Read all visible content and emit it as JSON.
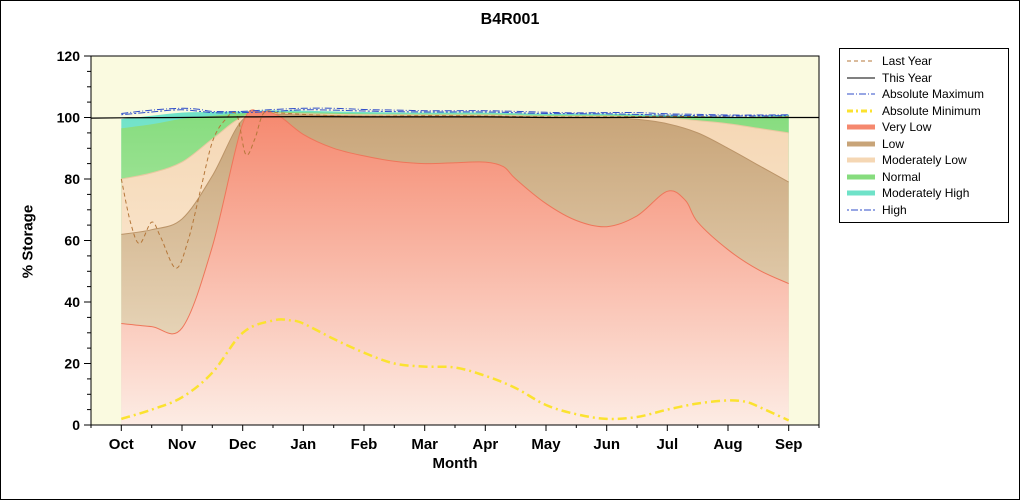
{
  "chart_data": {
    "type": "area",
    "title": "B4R001",
    "xlabel": "Month",
    "ylabel": "% Storage",
    "categories": [
      "Oct",
      "Nov",
      "Dec",
      "Jan",
      "Feb",
      "Mar",
      "Apr",
      "May",
      "Jun",
      "Jul",
      "Aug",
      "Sep"
    ],
    "ylim": [
      0,
      120
    ],
    "y_major_ticks": [
      0,
      20,
      40,
      60,
      80,
      100,
      120
    ],
    "y_minor_step": 5,
    "plot_bg": "#fafae0",
    "bands": [
      {
        "name": "Moderately High",
        "color_top": "#6fe2c8",
        "color_bottom": "#d5f7ee",
        "edge": "",
        "points": [
          [
            0,
            99.5
          ],
          [
            0.5,
            100.6
          ],
          [
            1,
            101.6
          ],
          [
            1.5,
            101.8
          ],
          [
            2,
            102
          ],
          [
            2.5,
            102.3
          ],
          [
            3,
            102.2
          ],
          [
            4,
            101.8
          ],
          [
            5,
            101.6
          ],
          [
            6,
            101.6
          ],
          [
            7,
            101.2
          ],
          [
            8,
            101.2
          ],
          [
            9,
            100.8
          ],
          [
            10,
            100.2
          ],
          [
            10.5,
            100.4
          ],
          [
            11,
            101
          ]
        ]
      },
      {
        "name": "Normal",
        "color_top": "#86dc7e",
        "color_bottom": "#ddf6d4",
        "edge": "",
        "points": [
          [
            0,
            96.5
          ],
          [
            0.5,
            97.8
          ],
          [
            1,
            99.6
          ],
          [
            1.5,
            100.6
          ],
          [
            2,
            101.4
          ],
          [
            2.5,
            101.8
          ],
          [
            3,
            101.7
          ],
          [
            4,
            101.3
          ],
          [
            5,
            101.2
          ],
          [
            6,
            101.2
          ],
          [
            7,
            100.8
          ],
          [
            8,
            100.8
          ],
          [
            9,
            100.3
          ],
          [
            10,
            99.6
          ],
          [
            10.5,
            99.9
          ],
          [
            11,
            100.6
          ]
        ]
      },
      {
        "name": "Moderately Low",
        "color_top": "#f5d7b4",
        "color_bottom": "#fdf2e3",
        "edge": "#e8c9a0",
        "points": [
          [
            0,
            80
          ],
          [
            0.5,
            82
          ],
          [
            1,
            85.5
          ],
          [
            1.5,
            93
          ],
          [
            2,
            100.2
          ],
          [
            2.5,
            101.4
          ],
          [
            3,
            101.2
          ],
          [
            4,
            100.9
          ],
          [
            5,
            100.8
          ],
          [
            6,
            100.8
          ],
          [
            7,
            100.4
          ],
          [
            8,
            100.4
          ],
          [
            9,
            99.8
          ],
          [
            9.5,
            99
          ],
          [
            10,
            98
          ],
          [
            10.5,
            96.5
          ],
          [
            11,
            95
          ]
        ]
      },
      {
        "name": "Low",
        "color_top": "#c8a478",
        "color_bottom": "#f2e6cf",
        "edge": "#bb9468",
        "points": [
          [
            0,
            62
          ],
          [
            0.5,
            63.5
          ],
          [
            1,
            67
          ],
          [
            1.5,
            81
          ],
          [
            2,
            99.3
          ],
          [
            2.5,
            101
          ],
          [
            3,
            100.8
          ],
          [
            4,
            100.5
          ],
          [
            5,
            100.4
          ],
          [
            6,
            100.4
          ],
          [
            7,
            100
          ],
          [
            8,
            100
          ],
          [
            8.5,
            99.4
          ],
          [
            9,
            98
          ],
          [
            9.5,
            95
          ],
          [
            10,
            90
          ],
          [
            10.5,
            84.5
          ],
          [
            11,
            79
          ]
        ]
      },
      {
        "name": "Very Low",
        "color_top": "#f5886e",
        "color_bottom": "#fdece4",
        "edge": "#ee765a",
        "points": [
          [
            0,
            33
          ],
          [
            0.5,
            32
          ],
          [
            1,
            31.5
          ],
          [
            1.5,
            58
          ],
          [
            2,
            98
          ],
          [
            2.3,
            101.8
          ],
          [
            2.6,
            100.5
          ],
          [
            3,
            94.5
          ],
          [
            3.5,
            90
          ],
          [
            4,
            87.5
          ],
          [
            4.5,
            85.8
          ],
          [
            5,
            85
          ],
          [
            5.5,
            85.3
          ],
          [
            6,
            85.5
          ],
          [
            6.3,
            84
          ],
          [
            6.5,
            80
          ],
          [
            7,
            72
          ],
          [
            7.5,
            66.5
          ],
          [
            8,
            64.5
          ],
          [
            8.5,
            68
          ],
          [
            9,
            76
          ],
          [
            9.3,
            73
          ],
          [
            9.5,
            66
          ],
          [
            10,
            57
          ],
          [
            10.5,
            50.5
          ],
          [
            11,
            46
          ]
        ]
      }
    ],
    "lines": [
      {
        "name": "High",
        "color": "#2f4ec9",
        "dash": "2 2 7 2",
        "width": 1,
        "points": [
          [
            0,
            100.9
          ],
          [
            0.5,
            101.8
          ],
          [
            1,
            102.5
          ],
          [
            1.5,
            101.6
          ],
          [
            2,
            101.6
          ],
          [
            2.5,
            102
          ],
          [
            3,
            102.5
          ],
          [
            3.5,
            102.4
          ],
          [
            4,
            102.1
          ],
          [
            5,
            101.8
          ],
          [
            6,
            101.8
          ],
          [
            7,
            101.3
          ],
          [
            8,
            101.2
          ],
          [
            9,
            100.8
          ],
          [
            10,
            100.5
          ],
          [
            11,
            100.6
          ]
        ]
      },
      {
        "name": "Absolute Maximum",
        "color": "#2f4ec9",
        "dash": "7 2 1 2",
        "width": 1,
        "points": [
          [
            0,
            101.3
          ],
          [
            0.5,
            102.4
          ],
          [
            1,
            103
          ],
          [
            1.3,
            102.6
          ],
          [
            1.5,
            102
          ],
          [
            2,
            102
          ],
          [
            2.5,
            102.6
          ],
          [
            3,
            103
          ],
          [
            3.5,
            103
          ],
          [
            4,
            102.6
          ],
          [
            4.5,
            102.4
          ],
          [
            5,
            102.2
          ],
          [
            5.5,
            102.2
          ],
          [
            6,
            102.2
          ],
          [
            6.5,
            102
          ],
          [
            7,
            101.7
          ],
          [
            7.5,
            101.5
          ],
          [
            8,
            101.6
          ],
          [
            8.5,
            101.6
          ],
          [
            9,
            101.2
          ],
          [
            9.5,
            101
          ],
          [
            10,
            100.8
          ],
          [
            10.5,
            100.8
          ],
          [
            11,
            100.9
          ]
        ]
      },
      {
        "name": "Absolute Minimum",
        "color": "#fbe22f",
        "dash": "9 4 2 4",
        "width": 2.5,
        "points": [
          [
            0,
            2
          ],
          [
            0.5,
            5
          ],
          [
            1,
            9
          ],
          [
            1.5,
            17
          ],
          [
            2,
            30
          ],
          [
            2.5,
            34
          ],
          [
            2.8,
            34
          ],
          [
            3,
            33
          ],
          [
            3.5,
            28
          ],
          [
            4,
            23.5
          ],
          [
            4.5,
            20
          ],
          [
            5,
            19
          ],
          [
            5.5,
            18.7
          ],
          [
            6,
            16
          ],
          [
            6.5,
            12
          ],
          [
            7,
            6.5
          ],
          [
            7.5,
            3.5
          ],
          [
            8,
            2
          ],
          [
            8.5,
            2.6
          ],
          [
            9,
            5
          ],
          [
            9.5,
            7
          ],
          [
            10,
            8
          ],
          [
            10.3,
            7.5
          ],
          [
            10.5,
            6
          ],
          [
            11,
            1.5
          ]
        ]
      },
      {
        "name": "Last Year",
        "color": "#b5773a",
        "dash": "4 3",
        "width": 1,
        "points": [
          [
            0,
            80
          ],
          [
            0.15,
            66
          ],
          [
            0.3,
            59
          ],
          [
            0.5,
            66
          ],
          [
            0.65,
            61
          ],
          [
            0.9,
            51
          ],
          [
            1.1,
            60
          ],
          [
            1.3,
            76
          ],
          [
            1.5,
            92
          ],
          [
            1.7,
            99
          ],
          [
            1.9,
            101
          ],
          [
            2.05,
            88
          ],
          [
            2.2,
            93
          ],
          [
            2.35,
            101.5
          ],
          [
            2.6,
            101.5
          ],
          [
            3,
            101
          ],
          [
            3.5,
            100.6
          ],
          [
            4,
            100.4
          ],
          [
            5,
            100.6
          ],
          [
            6,
            100.5
          ],
          [
            7,
            100.2
          ],
          [
            8,
            100.2
          ],
          [
            9,
            100.4
          ],
          [
            10,
            100.1
          ],
          [
            11,
            100.2
          ]
        ]
      },
      {
        "name": "This Year",
        "color": "#000000",
        "dash": "",
        "width": 1.2,
        "points": [
          [
            -0.5,
            99.8
          ],
          [
            0,
            99.9
          ],
          [
            1,
            100
          ],
          [
            2,
            100.2
          ],
          [
            3,
            100.3
          ],
          [
            4,
            100.2
          ],
          [
            5,
            100.2
          ],
          [
            6,
            100.2
          ],
          [
            7,
            100
          ],
          [
            8,
            100
          ],
          [
            9,
            100.1
          ],
          [
            10,
            100
          ],
          [
            11,
            100
          ],
          [
            11.5,
            100
          ]
        ]
      }
    ],
    "legend": {
      "items": [
        {
          "label": "Last Year",
          "kind": "line",
          "color": "#b5773a",
          "dash": "4 3",
          "width": 1
        },
        {
          "label": "This Year",
          "kind": "line",
          "color": "#000000",
          "dash": "",
          "width": 1
        },
        {
          "label": "Absolute Maximum",
          "kind": "line",
          "color": "#2f4ec9",
          "dash": "7 2 1 2",
          "width": 1
        },
        {
          "label": "Absolute Minimum",
          "kind": "line",
          "color": "#fbe22f",
          "dash": "6 3 2 3",
          "width": 3
        },
        {
          "label": "Very Low",
          "kind": "band",
          "color": "#f5886e",
          "dash": "",
          "width": 5
        },
        {
          "label": "Low",
          "kind": "band",
          "color": "#c8a478",
          "dash": "",
          "width": 5
        },
        {
          "label": "Moderately Low",
          "kind": "band",
          "color": "#f5d7b4",
          "dash": "",
          "width": 5
        },
        {
          "label": "Normal",
          "kind": "band",
          "color": "#86dc7e",
          "dash": "",
          "width": 5
        },
        {
          "label": "Moderately High",
          "kind": "band",
          "color": "#6fe2c8",
          "dash": "",
          "width": 5
        },
        {
          "label": "High",
          "kind": "line",
          "color": "#2f4ec9",
          "dash": "2 2 7 2",
          "width": 1
        }
      ]
    }
  }
}
